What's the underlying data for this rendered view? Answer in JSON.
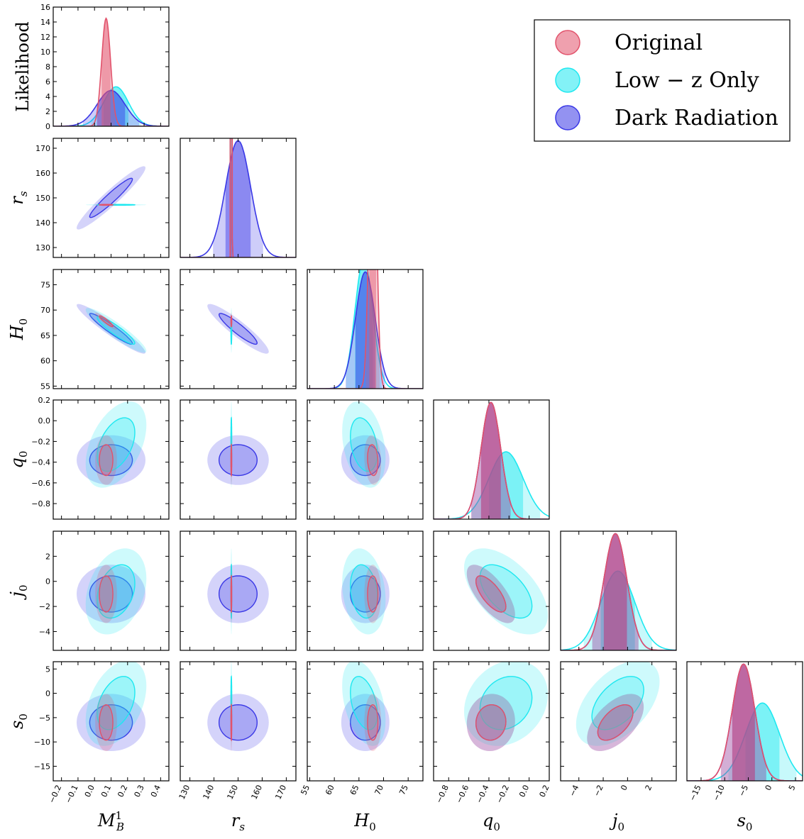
{
  "chart_data": {
    "type": "corner",
    "title": "",
    "parameters": [
      {
        "key": "MB",
        "label": "M",
        "sub": "B",
        "sup": "1",
        "range": [
          -0.25,
          0.45
        ],
        "ticks": [
          -0.2,
          -0.1,
          0.0,
          0.1,
          0.2,
          0.3,
          0.4
        ],
        "tick_labels": [
          "−0.2",
          "−0.1",
          "0.0",
          "0.1",
          "0.2",
          "0.3",
          "0.4"
        ]
      },
      {
        "key": "rs",
        "label": "r",
        "sub": "s",
        "sup": "",
        "range": [
          126,
          174
        ],
        "ticks": [
          130,
          140,
          150,
          160,
          170
        ],
        "tick_labels": [
          "130",
          "140",
          "150",
          "160",
          "170"
        ]
      },
      {
        "key": "H0",
        "label": "H",
        "sub": "0",
        "sup": "",
        "range": [
          54.5,
          78
        ],
        "ticks": [
          55,
          60,
          65,
          70,
          75
        ],
        "tick_labels": [
          "55",
          "60",
          "65",
          "70",
          "75"
        ]
      },
      {
        "key": "q0",
        "label": "q",
        "sub": "0",
        "sup": "",
        "range": [
          -0.95,
          0.2
        ],
        "ticks": [
          -0.8,
          -0.6,
          -0.4,
          -0.2,
          0.0,
          0.2
        ],
        "tick_labels": [
          "−0.8",
          "−0.6",
          "−0.4",
          "−0.2",
          "0.0",
          "0.2"
        ]
      },
      {
        "key": "j0",
        "label": "j",
        "sub": "0",
        "sup": "",
        "range": [
          -5.5,
          4
        ],
        "ticks": [
          -4,
          -2,
          0,
          2
        ],
        "tick_labels": [
          "−4",
          "−2",
          "0",
          "2"
        ]
      },
      {
        "key": "s0",
        "label": "s",
        "sub": "0",
        "sup": "",
        "range": [
          -18,
          6.5
        ],
        "ticks": [
          -15,
          -10,
          -5,
          0,
          5
        ],
        "tick_labels": [
          "−15",
          "−10",
          "−5",
          "0",
          "5"
        ]
      }
    ],
    "likelihood_axis": {
      "label": "Likelihood",
      "range": [
        0,
        16
      ],
      "ticks": [
        0,
        2,
        4,
        6,
        8,
        10,
        12,
        14,
        16
      ]
    },
    "series": [
      {
        "name": "Original",
        "color": "#e2526b",
        "means": {
          "MB": 0.07,
          "rs": 147.2,
          "H0": 67.8,
          "q0": -0.38,
          "j0": -1.0,
          "s0": -6.0
        },
        "sigmas": {
          "MB": 0.027,
          "rs": 0.12,
          "H0": 0.7,
          "q0": 0.098,
          "j0": 0.95,
          "s0": 2.4
        },
        "peak_MB": 14.5
      },
      {
        "name": "Low − z Only",
        "color": "#1ee8f0",
        "means": {
          "MB": 0.13,
          "rs": 147.2,
          "H0": 66.0,
          "q0": -0.23,
          "j0": -0.8,
          "s0": -2.0
        },
        "sigmas": {
          "MB": 0.075,
          "rs": 0.12,
          "H0": 1.8,
          "q0": 0.17,
          "j0": 1.4,
          "s0": 3.6
        },
        "peak_MB": 5.3
      },
      {
        "name": "Dark Radiation",
        "color": "#3a38e6",
        "means": {
          "MB": 0.1,
          "rs": 150.0,
          "H0": 66.3,
          "q0": -0.38,
          "j0": -1.0,
          "s0": -6.0
        },
        "sigmas": {
          "MB": 0.085,
          "rs": 5.2,
          "H0": 2.0,
          "q0": 0.098,
          "j0": 0.95,
          "s0": 2.4
        },
        "peak_MB": 4.8
      }
    ],
    "correlations": {
      "MB|rs": {
        "Original": 0.0,
        "Low − z Only": 0.0,
        "Dark Radiation": 0.95
      },
      "MB|H0": {
        "Original": -0.93,
        "Low − z Only": -0.92,
        "Dark Radiation": -0.95
      },
      "rs|H0": {
        "Original": 0.0,
        "Low − z Only": 0.0,
        "Dark Radiation": -0.92
      },
      "q0|j0": {
        "Original": -0.7,
        "Low − z Only": -0.55,
        "Dark Radiation": -0.7
      },
      "j0|s0": {
        "Original": 0.55,
        "Low − z Only": 0.5,
        "Dark Radiation": 0.55
      },
      "q0|s0": {
        "Original": 0.05,
        "Low − z Only": 0.2,
        "Dark Radiation": 0.05
      },
      "MB|q0": {
        "Original": 0.0,
        "Low − z Only": 0.45,
        "Dark Radiation": 0.0
      },
      "H0|q0": {
        "Original": -0.15,
        "Low − z Only": -0.3,
        "Dark Radiation": 0.0
      },
      "MB|j0": {
        "Original": 0.0,
        "Low − z Only": 0.3,
        "Dark Radiation": 0.0
      },
      "H0|j0": {
        "Original": 0.0,
        "Low − z Only": -0.2,
        "Dark Radiation": 0.0
      },
      "MB|s0": {
        "Original": 0.0,
        "Low − z Only": 0.4,
        "Dark Radiation": 0.0
      },
      "H0|s0": {
        "Original": 0.0,
        "Low − z Only": -0.4,
        "Dark Radiation": 0.0
      }
    },
    "legend": {
      "placement": "top-right",
      "entries": [
        "Original",
        "Low − z Only",
        "Dark Radiation"
      ]
    },
    "grid": false
  }
}
